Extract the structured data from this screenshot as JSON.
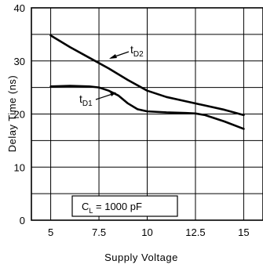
{
  "chart_data": {
    "type": "line",
    "title": "",
    "xlabel": "Supply Voltage",
    "ylabel": "Delay Time (ns)",
    "xlim": [
      4,
      16
    ],
    "ylim": [
      0,
      40
    ],
    "x_ticks": [
      5,
      7.5,
      10,
      12.5,
      15
    ],
    "x_tick_labels": [
      "5",
      "7.5",
      "10",
      "12.5",
      "15"
    ],
    "y_ticks": [
      0,
      10,
      20,
      30,
      40
    ],
    "y_tick_labels": [
      "0",
      "10",
      "20",
      "30",
      "40"
    ],
    "grid": true,
    "annotation": {
      "main": "C",
      "sub": "L",
      "rest": " = 1000 pF"
    },
    "series": [
      {
        "label_main": "t",
        "label_sub": "D2",
        "x": [
          5,
          6,
          7,
          8,
          9,
          10,
          11,
          12,
          13,
          14,
          15
        ],
        "y": [
          34.8,
          32.6,
          30.6,
          28.6,
          26.4,
          24.4,
          23.2,
          22.4,
          21.6,
          20.8,
          19.8
        ]
      },
      {
        "label_main": "t",
        "label_sub": "D1",
        "x": [
          5,
          6,
          7,
          7.5,
          8,
          8.5,
          9,
          9.5,
          10,
          11,
          12,
          12.5,
          13,
          14,
          15
        ],
        "y": [
          25.2,
          25.3,
          25.2,
          25.0,
          24.4,
          23.5,
          22.0,
          20.9,
          20.5,
          20.3,
          20.2,
          20.1,
          19.8,
          18.6,
          17.2
        ]
      }
    ]
  }
}
